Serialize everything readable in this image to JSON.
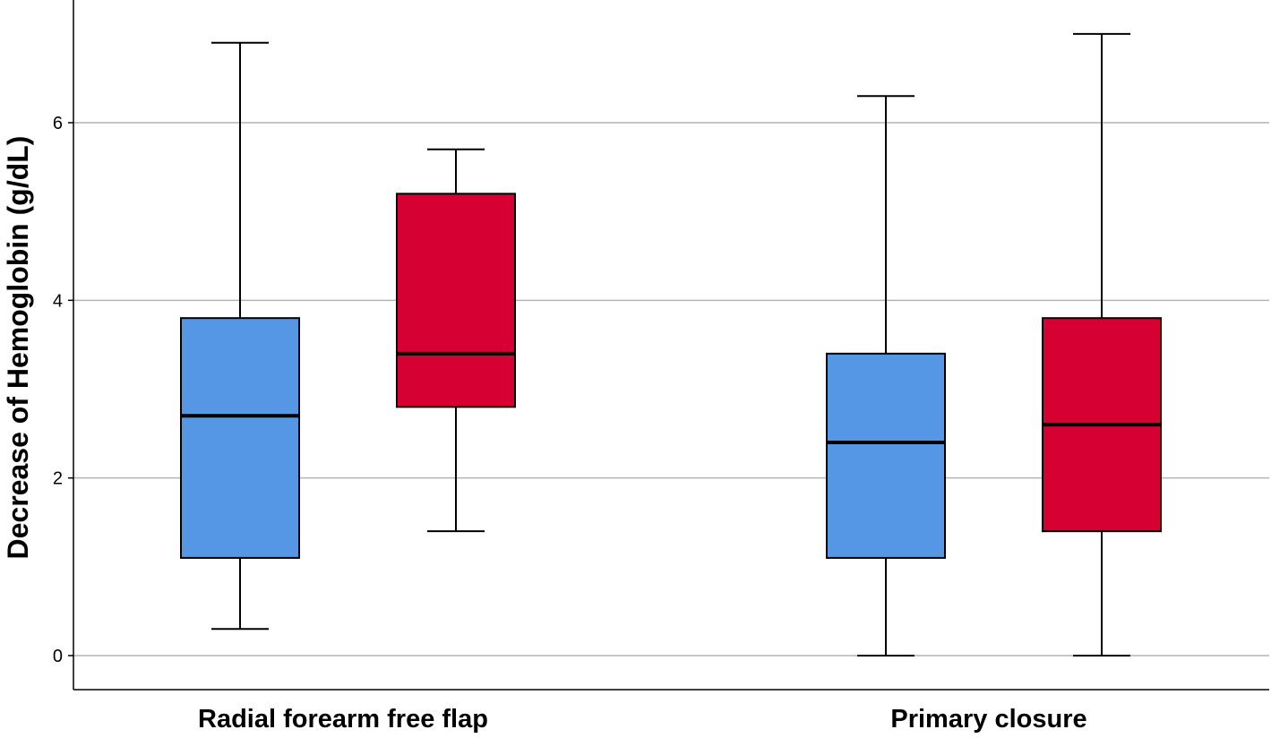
{
  "chart_data": {
    "type": "box",
    "title": "",
    "xlabel": "",
    "ylabel": "Decrease of Hemoglobin (g/dL)",
    "ylim": [
      -0.37,
      7.37
    ],
    "yticks": [
      0,
      2,
      4,
      6
    ],
    "grid": "horizontal",
    "categories": [
      "Radial forearm free flap",
      "Primary closure"
    ],
    "series_colors": [
      "#5597E4",
      "#D70033"
    ],
    "boxes": [
      {
        "category": "Radial forearm free flap",
        "series": 0,
        "min": 0.3,
        "q1": 1.1,
        "median": 2.7,
        "q3": 3.8,
        "max": 6.9
      },
      {
        "category": "Radial forearm free flap",
        "series": 1,
        "min": 1.4,
        "q1": 2.8,
        "median": 3.4,
        "q3": 5.2,
        "max": 5.7
      },
      {
        "category": "Primary closure",
        "series": 0,
        "min": 0.0,
        "q1": 1.1,
        "median": 2.4,
        "q3": 3.4,
        "max": 6.3
      },
      {
        "category": "Primary closure",
        "series": 1,
        "min": 0.0,
        "q1": 1.4,
        "median": 2.6,
        "q3": 3.8,
        "max": 7.0
      }
    ]
  }
}
